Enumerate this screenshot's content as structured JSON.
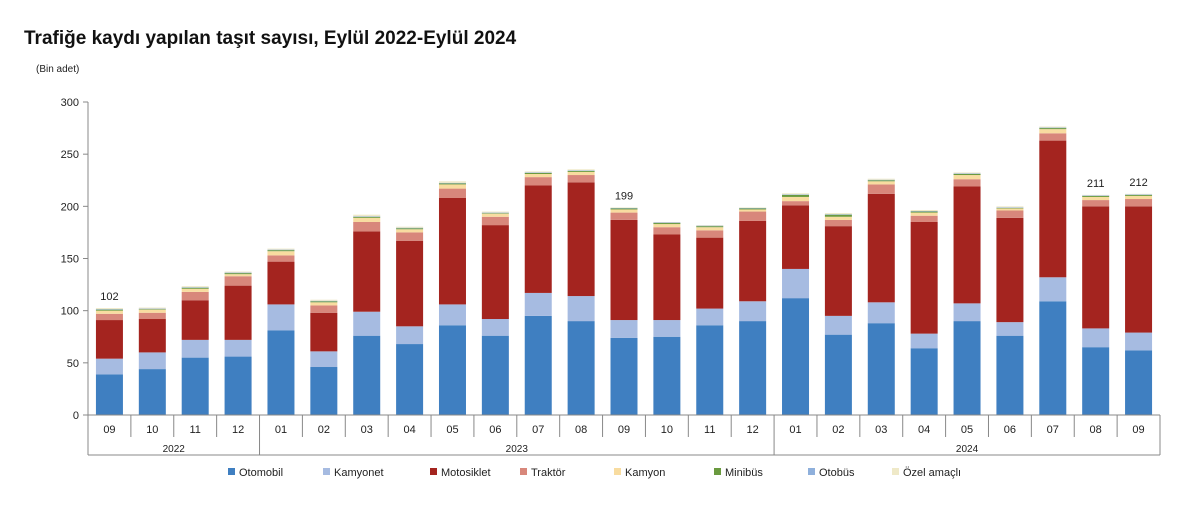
{
  "chart_data": {
    "type": "bar",
    "stacked": true,
    "title": "Trafiğe kaydı yapılan taşıt sayısı, Eylül 2022-Eylül 2024",
    "ylabel": "(Bin adet)",
    "ylim": [
      0,
      300
    ],
    "yticks": [
      0,
      50,
      100,
      150,
      200,
      250,
      300
    ],
    "grid": false,
    "legend_position": "bottom",
    "categories": [
      "09",
      "10",
      "11",
      "12",
      "01",
      "02",
      "03",
      "04",
      "05",
      "06",
      "07",
      "08",
      "09",
      "10",
      "11",
      "12",
      "01",
      "02",
      "03",
      "04",
      "05",
      "06",
      "07",
      "08",
      "09"
    ],
    "years": [
      {
        "label": "2022",
        "count": 4
      },
      {
        "label": "2023",
        "count": 12
      },
      {
        "label": "2024",
        "count": 9
      }
    ],
    "data_labels": [
      {
        "index": 0,
        "text": "102"
      },
      {
        "index": 12,
        "text": "199"
      },
      {
        "index": 23,
        "text": "211"
      },
      {
        "index": 24,
        "text": "212"
      }
    ],
    "series": [
      {
        "name": "Otomobil",
        "color": "#3f7fc1",
        "values": [
          39,
          44,
          55,
          56,
          81,
          46,
          76,
          68,
          86,
          76,
          95,
          90,
          74,
          75,
          86,
          90,
          112,
          77,
          88,
          64,
          90,
          76,
          109,
          65,
          62
        ]
      },
      {
        "name": "Kamyonet",
        "color": "#a6bbe1",
        "values": [
          15,
          16,
          17,
          16,
          25,
          15,
          23,
          17,
          20,
          16,
          22,
          24,
          17,
          16,
          16,
          19,
          28,
          18,
          20,
          14,
          17,
          13,
          23,
          18,
          17
        ]
      },
      {
        "name": "Motosiklet",
        "color": "#a4241f",
        "values": [
          37,
          32,
          38,
          52,
          41,
          37,
          77,
          82,
          102,
          90,
          103,
          109,
          96,
          82,
          68,
          77,
          61,
          86,
          104,
          107,
          112,
          100,
          131,
          117,
          121
        ]
      },
      {
        "name": "Traktör",
        "color": "#d8877b",
        "values": [
          6,
          6,
          8,
          9,
          6,
          7,
          9,
          8,
          9,
          8,
          8,
          7,
          7,
          7,
          7,
          9,
          4,
          6,
          9,
          6,
          7,
          7,
          7,
          6,
          7
        ]
      },
      {
        "name": "Kamyon",
        "color": "#f8dca0",
        "values": [
          3,
          3,
          3,
          2,
          4,
          3,
          4,
          3,
          4,
          3,
          3,
          3,
          3,
          3,
          3,
          2,
          4,
          3,
          3,
          3,
          4,
          2,
          4,
          3,
          3
        ]
      },
      {
        "name": "Minibüs",
        "color": "#6a9a3f",
        "values": [
          1,
          0.5,
          1,
          1,
          1,
          1,
          1,
          1,
          1,
          0.5,
          1,
          1,
          1,
          1,
          1,
          1,
          2,
          2,
          1,
          1,
          1,
          0.5,
          1,
          1,
          1
        ]
      },
      {
        "name": "Otobüs",
        "color": "#8fb0dc",
        "values": [
          0.5,
          0.5,
          0.5,
          0.5,
          0.5,
          0.5,
          0.5,
          0.5,
          0.5,
          0.5,
          0.5,
          0.5,
          0.5,
          0.5,
          0.5,
          0.5,
          0.5,
          0.5,
          0.5,
          0.5,
          0.5,
          0.5,
          0.5,
          0.5,
          0.5
        ]
      },
      {
        "name": "Özel amaçlı",
        "color": "#efe9c8",
        "values": [
          1,
          1,
          1,
          1,
          1,
          1,
          1.5,
          1,
          1.5,
          1,
          1,
          1,
          0.5,
          0.5,
          0.5,
          0.5,
          1,
          1,
          1,
          1,
          1,
          1,
          1,
          0.5,
          0.5
        ]
      }
    ]
  }
}
